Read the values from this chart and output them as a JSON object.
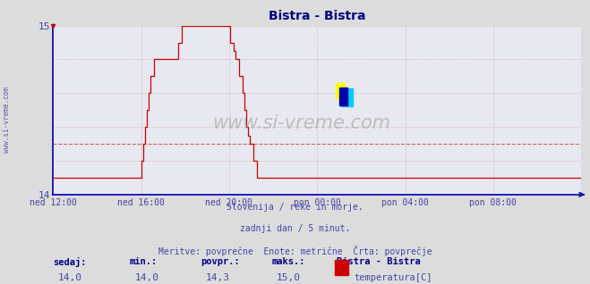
{
  "title": "Bistra - Bistra",
  "title_color": "#000080",
  "bg_color": "#dcdcdc",
  "plot_bg_color": "#e8e8f0",
  "line_color": "#cc0000",
  "grid_color": "#cc9999",
  "grid_linestyle": "dotted",
  "avg_line_color": "#cc6666",
  "avg_line_style": "--",
  "axis_color": "#0000aa",
  "tick_color": "#4444aa",
  "ylim": [
    14.0,
    15.0
  ],
  "ytick_vals": [
    14.0,
    15.0
  ],
  "ytick_labels": [
    "14",
    "15"
  ],
  "xtick_labels": [
    "ned 12:00",
    "ned 16:00",
    "ned 20:00",
    "pon 00:00",
    "pon 04:00",
    "pon 08:00"
  ],
  "xtick_norm": [
    0.0,
    0.1667,
    0.3333,
    0.5,
    0.6667,
    0.8333
  ],
  "hline_avg": 14.3,
  "side_text": "www.si-vreme.com",
  "watermark_text": "www.si-vreme.com",
  "subtitle_lines": [
    "Slovenija / reke in morje.",
    "zadnji dan / 5 minut.",
    "Meritve: povprečne  Enote: metrične  Črta: povprečje"
  ],
  "footer_labels": [
    "sedaj:",
    "min.:",
    "povpr.:",
    "maks.:"
  ],
  "footer_values": [
    "14,0",
    "14,0",
    "14,3",
    "15,0"
  ],
  "legend_series_title": "Bistra - Bistra",
  "legend_series_label": "temperatura[C]",
  "legend_series_color": "#cc0000",
  "temperature_data": [
    14.1,
    14.1,
    14.1,
    14.1,
    14.1,
    14.1,
    14.1,
    14.1,
    14.1,
    14.1,
    14.1,
    14.1,
    14.1,
    14.1,
    14.1,
    14.1,
    14.1,
    14.1,
    14.1,
    14.1,
    14.1,
    14.1,
    14.1,
    14.1,
    14.1,
    14.1,
    14.1,
    14.1,
    14.1,
    14.1,
    14.1,
    14.1,
    14.1,
    14.1,
    14.1,
    14.1,
    14.1,
    14.1,
    14.1,
    14.1,
    14.1,
    14.1,
    14.1,
    14.1,
    14.1,
    14.1,
    14.1,
    14.1,
    14.2,
    14.3,
    14.4,
    14.5,
    14.6,
    14.7,
    14.7,
    14.8,
    14.8,
    14.8,
    14.8,
    14.8,
    14.8,
    14.8,
    14.8,
    14.8,
    14.8,
    14.8,
    14.8,
    14.8,
    14.9,
    14.9,
    15.0,
    15.0,
    15.0,
    15.0,
    15.0,
    15.0,
    15.0,
    15.0,
    15.0,
    15.0,
    15.0,
    15.0,
    15.0,
    15.0,
    15.0,
    15.0,
    15.0,
    15.0,
    15.0,
    15.0,
    15.0,
    15.0,
    15.0,
    15.0,
    15.0,
    15.0,
    14.9,
    14.9,
    14.85,
    14.8,
    14.8,
    14.7,
    14.7,
    14.6,
    14.5,
    14.4,
    14.35,
    14.3,
    14.3,
    14.2,
    14.2,
    14.1,
    14.1,
    14.1,
    14.1,
    14.1,
    14.1,
    14.1,
    14.1,
    14.1,
    14.1,
    14.1,
    14.1,
    14.1,
    14.1,
    14.1,
    14.1,
    14.1,
    14.1,
    14.1,
    14.1,
    14.1,
    14.1,
    14.1,
    14.1,
    14.1,
    14.1,
    14.1,
    14.1,
    14.1,
    14.1,
    14.1,
    14.1,
    14.1,
    14.1,
    14.1,
    14.1,
    14.1,
    14.1,
    14.1,
    14.1,
    14.1,
    14.1,
    14.1,
    14.1,
    14.1,
    14.1,
    14.1,
    14.1,
    14.1,
    14.1,
    14.1,
    14.1,
    14.1,
    14.1,
    14.1,
    14.1,
    14.1,
    14.1,
    14.1,
    14.1,
    14.1,
    14.1,
    14.1,
    14.1,
    14.1,
    14.1,
    14.1,
    14.1,
    14.1,
    14.1,
    14.1,
    14.1,
    14.1,
    14.1,
    14.1,
    14.1,
    14.1,
    14.1,
    14.1,
    14.1,
    14.1,
    14.1,
    14.1,
    14.1,
    14.1,
    14.1,
    14.1,
    14.1,
    14.1,
    14.1,
    14.1,
    14.1,
    14.1,
    14.1,
    14.1,
    14.1,
    14.1,
    14.1,
    14.1,
    14.1,
    14.1,
    14.1,
    14.1,
    14.1,
    14.1,
    14.1,
    14.1,
    14.1,
    14.1,
    14.1,
    14.1,
    14.1,
    14.1,
    14.1,
    14.1,
    14.1,
    14.1,
    14.1,
    14.1,
    14.1,
    14.1,
    14.1,
    14.1,
    14.1,
    14.1,
    14.1,
    14.1,
    14.1,
    14.1,
    14.1,
    14.1,
    14.1,
    14.1,
    14.1,
    14.1,
    14.1,
    14.1,
    14.1,
    14.1,
    14.1,
    14.1,
    14.1,
    14.1,
    14.1,
    14.1,
    14.1,
    14.1,
    14.1,
    14.1,
    14.1,
    14.1,
    14.1,
    14.1,
    14.1,
    14.1,
    14.1,
    14.1,
    14.1,
    14.1,
    14.1,
    14.1,
    14.1,
    14.1,
    14.1,
    14.1,
    14.1,
    14.1,
    14.1,
    14.1,
    14.1,
    14.1,
    14.1,
    14.1,
    14.1,
    14.1,
    14.1,
    14.1
  ]
}
